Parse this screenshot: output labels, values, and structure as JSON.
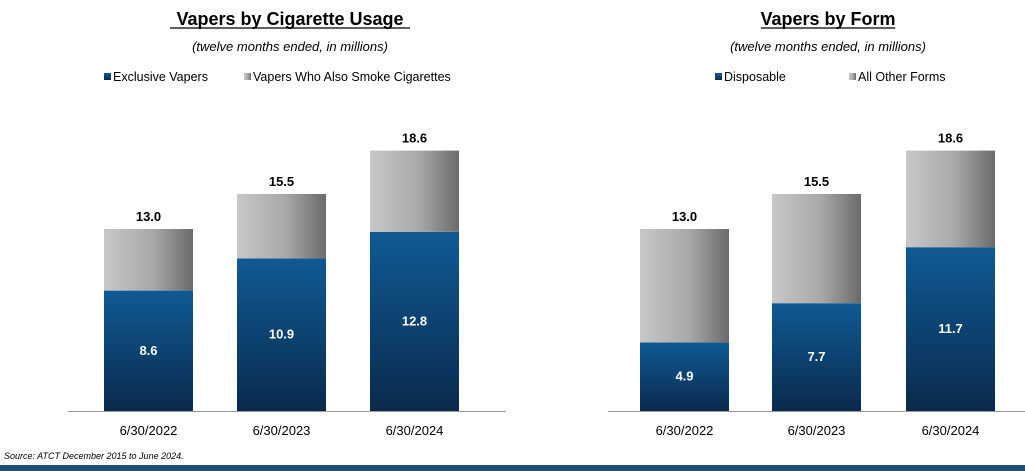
{
  "source_note": "Source: ATCT December 2015 to June 2024.",
  "colors": {
    "exclusive_top": "#0f5a95",
    "exclusive_bottom": "#0a2a4c",
    "other_left": "#c8c8c8",
    "other_right": "#6b6b6b",
    "footer_bar": "#1f4e79"
  },
  "chart_data": [
    {
      "type": "bar",
      "stacked": true,
      "title": "Vapers by Cigarette Usage",
      "subtitle": "(twelve months ended, in millions)",
      "categories": [
        "6/30/2022",
        "6/30/2023",
        "6/30/2024"
      ],
      "series": [
        {
          "name": "Exclusive Vapers",
          "values": [
            8.6,
            10.9,
            12.8
          ]
        },
        {
          "name": "Vapers Who Also Smoke Cigarettes",
          "values": [
            4.4,
            4.6,
            5.8
          ]
        }
      ],
      "totals": [
        13.0,
        15.5,
        18.6
      ],
      "bottom_labels": [
        "8.6",
        "10.9",
        "12.8"
      ],
      "total_labels": [
        "13.0",
        "15.5",
        "18.6"
      ],
      "ylim": [
        0,
        20
      ],
      "grid": false,
      "legend_position": "top"
    },
    {
      "type": "bar",
      "stacked": true,
      "title": "Vapers by Form",
      "subtitle": "(twelve months ended, in millions)",
      "categories": [
        "6/30/2022",
        "6/30/2023",
        "6/30/2024"
      ],
      "series": [
        {
          "name": "Disposable",
          "values": [
            4.9,
            7.7,
            11.7
          ]
        },
        {
          "name": "All Other Forms",
          "values": [
            8.1,
            7.8,
            6.9
          ]
        }
      ],
      "totals": [
        13.0,
        15.5,
        18.6
      ],
      "bottom_labels": [
        "4.9",
        "7.7",
        "11.7"
      ],
      "total_labels": [
        "13.0",
        "15.5",
        "18.6"
      ],
      "ylim": [
        0,
        20
      ],
      "grid": false,
      "legend_position": "top"
    }
  ]
}
